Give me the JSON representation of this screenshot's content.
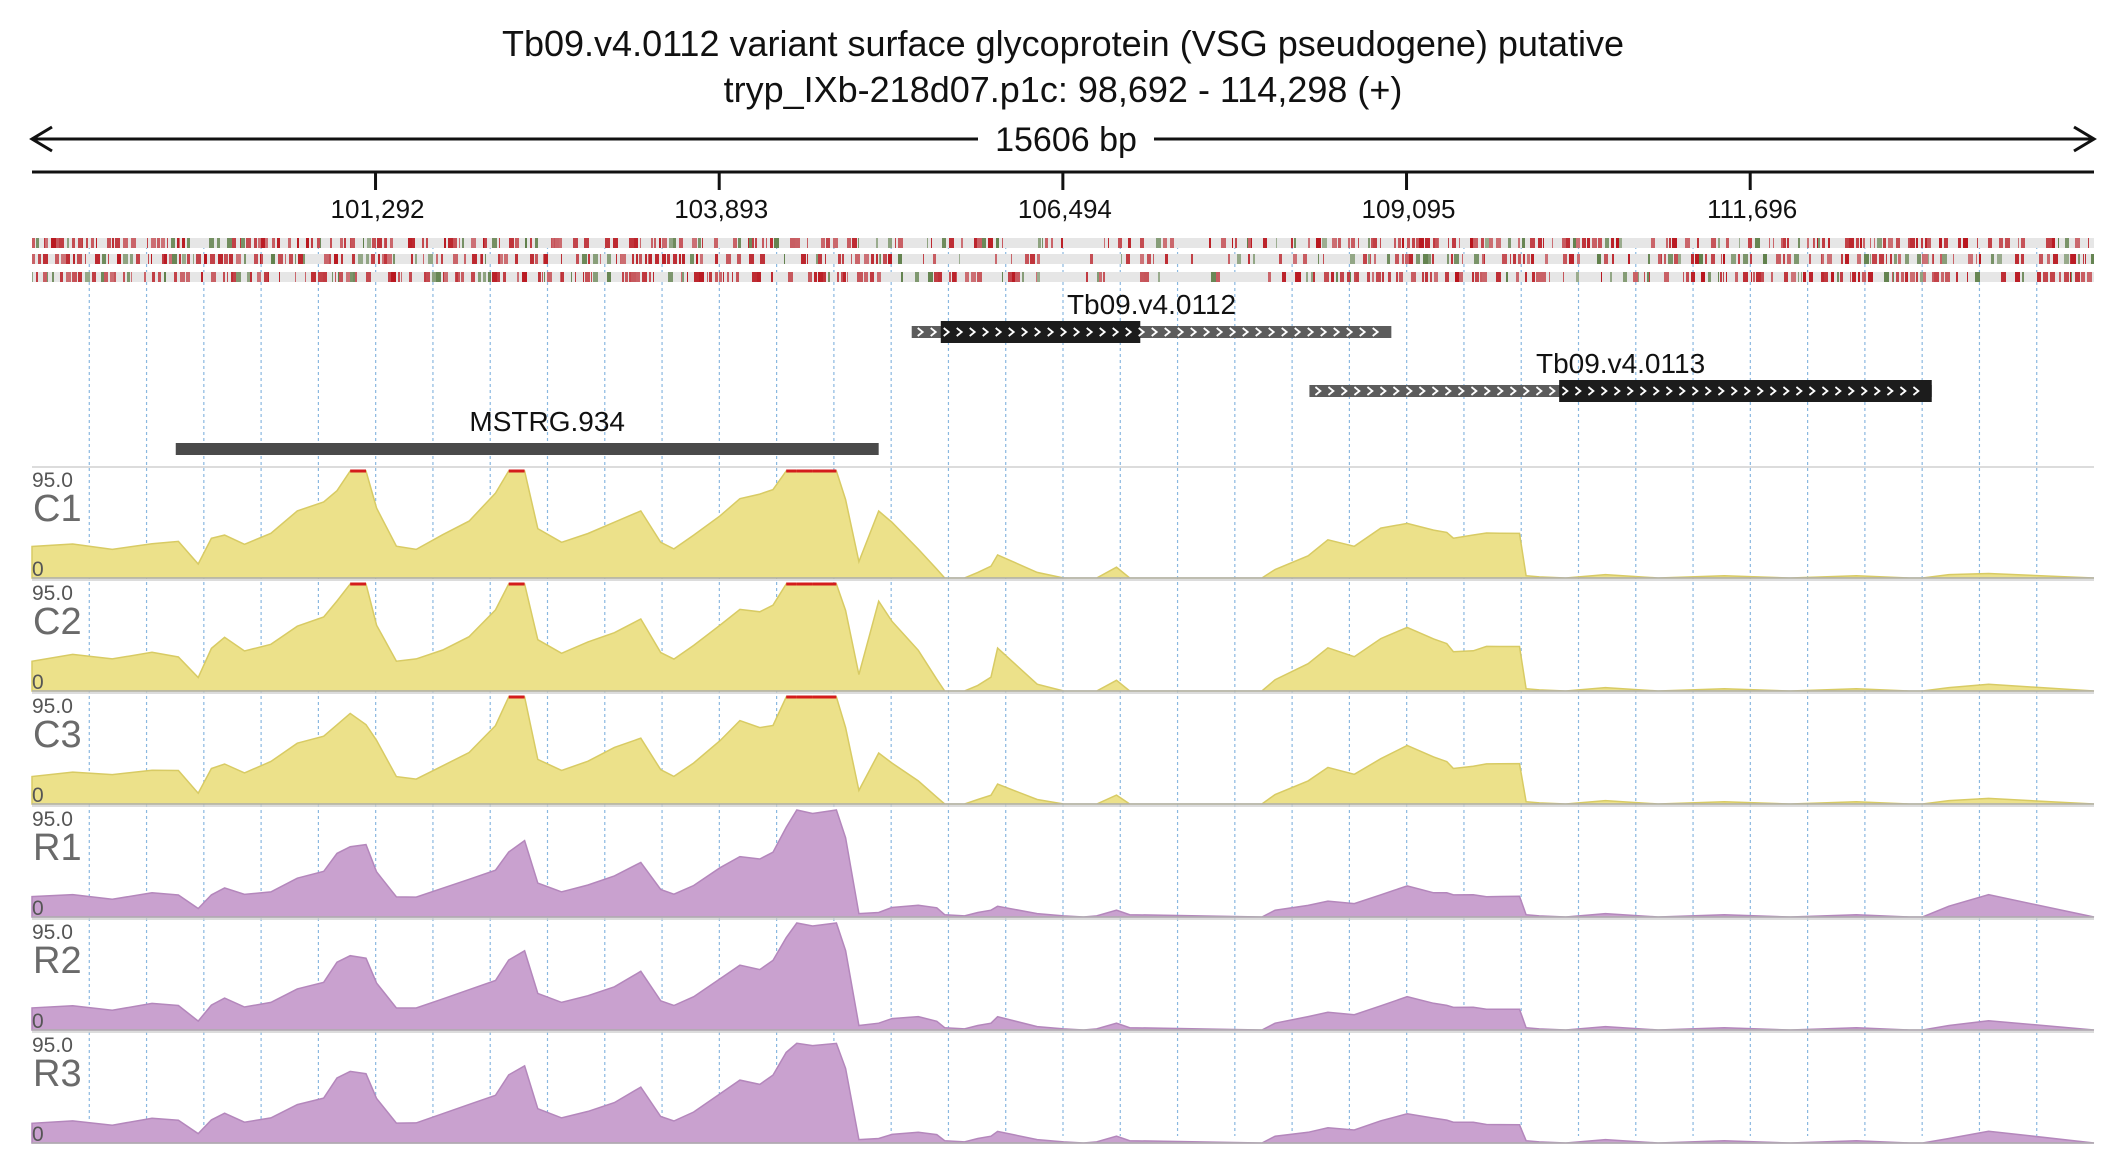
{
  "header": {
    "title_line1": "Tb09.v4.0112  variant surface glycoprotein (VSG  pseudogene)  putative",
    "title_line2": "tryp_IXb-218d07.p1c: 98,692 - 114,298 (+)",
    "span_label": "15606 bp"
  },
  "colors": {
    "chip_fill": "#ece18a",
    "chip_stroke": "#d8cb64",
    "rna_fill": "#c9a1cf",
    "rna_stroke": "#b487bc",
    "saturated": "#d41c1c",
    "gene_thick": "#1c1c1c",
    "gene_thin": "#5c5c5c",
    "transcript": "#4a4a4a",
    "grid": "#8ab8e0",
    "bar_red": "#b8141c",
    "bar_green": "#5f7f4a"
  },
  "chart_data": {
    "type": "area",
    "region": {
      "chrom": "tryp_IXb-218d07.p1c",
      "start": 98692,
      "end": 114298,
      "strand": "+"
    },
    "ticks": [
      {
        "pos": 101292,
        "label": "101,292"
      },
      {
        "pos": 103893,
        "label": "103,893"
      },
      {
        "pos": 106494,
        "label": "106,494"
      },
      {
        "pos": 109095,
        "label": "109,095"
      },
      {
        "pos": 111696,
        "label": "111,696"
      }
    ],
    "features": [
      {
        "name": "Tb09.v4.0112",
        "label": "Tb09.v4.0112",
        "start": 105350,
        "end": 108980,
        "cds_start": 105570,
        "cds_end": 107080
      },
      {
        "name": "Tb09.v4.0113",
        "label": "Tb09.v4.0113",
        "start": 108360,
        "end": 113070,
        "cds_start": 110250,
        "cds_end": 113070
      },
      {
        "name": "MSTRG.934",
        "label": "MSTRG.934",
        "start": 99780,
        "end": 105100
      }
    ],
    "tracks": [
      {
        "name": "C1",
        "label": "C1",
        "kind": "chip",
        "max_label": "95.0",
        "min_label": "0",
        "max": 95,
        "x": [
          98692,
          99000,
          99300,
          99600,
          99800,
          99950,
          100050,
          100150,
          100300,
          100500,
          100700,
          100900,
          101000,
          101100,
          101220,
          101300,
          101450,
          101600,
          101800,
          102000,
          102200,
          102300,
          102420,
          102520,
          102700,
          102900,
          103100,
          103300,
          103450,
          103550,
          103700,
          103900,
          104050,
          104200,
          104300,
          104400,
          104480,
          104600,
          104780,
          104850,
          104950,
          105100,
          105200,
          105400,
          105540,
          105600,
          105750,
          105850,
          105950,
          106000,
          106300,
          106500,
          106650,
          106750,
          106900,
          107000,
          108000,
          108100,
          108350,
          108500,
          108700,
          108900,
          109100,
          109300,
          109400,
          109450,
          109600,
          109700,
          109800,
          109950,
          110000,
          110100,
          110300,
          110600,
          111000,
          111500,
          112000,
          112500,
          112900,
          113000,
          113200,
          113500,
          114298
        ],
        "y": [
          28,
          30,
          25,
          30,
          32,
          12,
          35,
          38,
          30,
          40,
          60,
          68,
          78,
          95,
          95,
          62,
          28,
          25,
          38,
          50,
          75,
          95,
          95,
          44,
          32,
          40,
          50,
          60,
          32,
          26,
          38,
          55,
          70,
          74,
          78,
          95,
          95,
          95,
          95,
          70,
          15,
          60,
          50,
          26,
          8,
          0,
          0,
          5,
          10,
          20,
          5,
          0,
          0,
          0,
          10,
          0,
          0,
          8,
          20,
          34,
          28,
          44,
          48,
          42,
          40,
          35,
          38,
          40,
          40,
          40,
          2,
          1,
          0,
          3,
          0,
          2,
          0,
          2,
          0,
          0,
          3,
          4,
          0
        ]
      },
      {
        "name": "C2",
        "label": "C2",
        "kind": "chip",
        "max_label": "95.0",
        "min_label": "0",
        "max": 95,
        "x": [
          98692,
          99000,
          99300,
          99600,
          99800,
          99950,
          100050,
          100150,
          100300,
          100500,
          100700,
          100900,
          101000,
          101100,
          101220,
          101300,
          101450,
          101600,
          101800,
          102000,
          102200,
          102300,
          102420,
          102520,
          102700,
          102900,
          103100,
          103300,
          103450,
          103550,
          103700,
          103900,
          104050,
          104200,
          104300,
          104400,
          104480,
          104600,
          104780,
          104850,
          104950,
          105100,
          105200,
          105400,
          105540,
          105600,
          105750,
          105850,
          105950,
          106000,
          106300,
          106500,
          106650,
          106750,
          106900,
          107000,
          108000,
          108100,
          108350,
          108500,
          108700,
          108900,
          109100,
          109300,
          109400,
          109450,
          109600,
          109700,
          109800,
          109950,
          110000,
          110100,
          110300,
          110600,
          111000,
          111500,
          112000,
          112500,
          112900,
          113000,
          113200,
          113500,
          114298
        ],
        "y": [
          26,
          32,
          28,
          34,
          30,
          12,
          38,
          48,
          36,
          42,
          58,
          66,
          80,
          95,
          95,
          58,
          26,
          28,
          36,
          48,
          72,
          95,
          95,
          46,
          34,
          44,
          52,
          64,
          34,
          28,
          40,
          58,
          72,
          70,
          76,
          95,
          95,
          95,
          95,
          72,
          15,
          80,
          62,
          36,
          10,
          0,
          0,
          5,
          12,
          38,
          6,
          0,
          0,
          0,
          10,
          0,
          0,
          10,
          24,
          38,
          30,
          46,
          56,
          46,
          42,
          35,
          36,
          40,
          40,
          40,
          2,
          1,
          0,
          3,
          0,
          2,
          0,
          2,
          0,
          0,
          3,
          6,
          0
        ]
      },
      {
        "name": "C3",
        "label": "C3",
        "kind": "chip",
        "max_label": "95.0",
        "min_label": "0",
        "max": 95,
        "x": [
          98692,
          99000,
          99300,
          99600,
          99800,
          99950,
          100050,
          100150,
          100300,
          100500,
          100700,
          100900,
          101000,
          101100,
          101220,
          101300,
          101450,
          101600,
          101800,
          102000,
          102200,
          102300,
          102420,
          102520,
          102700,
          102900,
          103100,
          103300,
          103450,
          103550,
          103700,
          103900,
          104050,
          104200,
          104300,
          104400,
          104480,
          104600,
          104780,
          104850,
          104950,
          105100,
          105200,
          105400,
          105540,
          105600,
          105750,
          105850,
          105950,
          106000,
          106300,
          106500,
          106650,
          106750,
          106900,
          107000,
          108000,
          108100,
          108350,
          108500,
          108700,
          108900,
          109100,
          109300,
          109400,
          109450,
          109600,
          109700,
          109800,
          109950,
          110000,
          110100,
          110300,
          110600,
          111000,
          111500,
          112000,
          112500,
          112900,
          113000,
          113200,
          113500,
          114298
        ],
        "y": [
          24,
          28,
          26,
          30,
          30,
          10,
          32,
          36,
          28,
          38,
          54,
          60,
          70,
          80,
          70,
          56,
          24,
          22,
          34,
          46,
          70,
          95,
          95,
          40,
          30,
          38,
          50,
          58,
          30,
          24,
          36,
          56,
          74,
          68,
          70,
          95,
          95,
          95,
          95,
          68,
          12,
          45,
          36,
          20,
          6,
          0,
          0,
          4,
          8,
          18,
          4,
          0,
          0,
          0,
          8,
          0,
          0,
          8,
          20,
          32,
          26,
          40,
          52,
          42,
          38,
          32,
          34,
          36,
          36,
          36,
          2,
          1,
          0,
          3,
          0,
          2,
          0,
          2,
          0,
          0,
          3,
          5,
          0
        ]
      },
      {
        "name": "R1",
        "label": "R1",
        "kind": "rna",
        "max_label": "95.0",
        "min_label": "0",
        "max": 95,
        "x": [
          98692,
          99000,
          99300,
          99600,
          99800,
          99950,
          100050,
          100150,
          100300,
          100500,
          100700,
          100900,
          101000,
          101100,
          101220,
          101300,
          101450,
          101600,
          101800,
          102000,
          102200,
          102300,
          102420,
          102520,
          102700,
          102900,
          103100,
          103300,
          103450,
          103550,
          103700,
          103900,
          104050,
          104200,
          104300,
          104400,
          104480,
          104600,
          104780,
          104850,
          104950,
          105100,
          105200,
          105400,
          105540,
          105600,
          105750,
          105850,
          105950,
          106000,
          106300,
          106500,
          106650,
          106750,
          106900,
          107000,
          108000,
          108100,
          108350,
          108500,
          108700,
          108900,
          109100,
          109300,
          109400,
          109450,
          109600,
          109700,
          109800,
          109950,
          110000,
          110100,
          110300,
          110600,
          111000,
          111500,
          112000,
          112500,
          112900,
          113000,
          113200,
          113500,
          114298
        ],
        "y": [
          18,
          20,
          16,
          22,
          20,
          8,
          20,
          26,
          20,
          22,
          34,
          40,
          56,
          62,
          64,
          40,
          18,
          18,
          26,
          34,
          42,
          58,
          68,
          30,
          22,
          28,
          36,
          48,
          24,
          20,
          28,
          44,
          54,
          52,
          58,
          80,
          95,
          92,
          95,
          70,
          3,
          4,
          8,
          10,
          8,
          2,
          1,
          4,
          6,
          10,
          3,
          1,
          0,
          1,
          6,
          2,
          0,
          6,
          10,
          14,
          12,
          20,
          28,
          22,
          22,
          20,
          20,
          18,
          18,
          18,
          2,
          1,
          0,
          3,
          0,
          2,
          0,
          2,
          0,
          0,
          10,
          20,
          0
        ]
      },
      {
        "name": "R2",
        "label": "R2",
        "kind": "rna",
        "max_label": "95.0",
        "min_label": "0",
        "max": 95,
        "x": [
          98692,
          99000,
          99300,
          99600,
          99800,
          99950,
          100050,
          100150,
          100300,
          100500,
          100700,
          100900,
          101000,
          101100,
          101220,
          101300,
          101450,
          101600,
          101800,
          102000,
          102200,
          102300,
          102420,
          102520,
          102700,
          102900,
          103100,
          103300,
          103450,
          103550,
          103700,
          103900,
          104050,
          104200,
          104300,
          104400,
          104480,
          104600,
          104780,
          104850,
          104950,
          105100,
          105200,
          105400,
          105540,
          105600,
          105750,
          105850,
          105950,
          106000,
          106300,
          106500,
          106650,
          106750,
          106900,
          107000,
          108000,
          108100,
          108350,
          108500,
          108700,
          108900,
          109100,
          109300,
          109400,
          109450,
          109600,
          109700,
          109800,
          109950,
          110000,
          110100,
          110300,
          110600,
          111000,
          111500,
          112000,
          112500,
          112900,
          113000,
          113200,
          113500,
          114298
        ],
        "y": [
          20,
          22,
          18,
          24,
          22,
          8,
          22,
          28,
          20,
          24,
          36,
          42,
          60,
          66,
          64,
          42,
          20,
          20,
          28,
          36,
          44,
          62,
          70,
          32,
          24,
          30,
          38,
          52,
          26,
          22,
          30,
          46,
          58,
          54,
          62,
          82,
          95,
          92,
          95,
          70,
          4,
          6,
          10,
          12,
          8,
          2,
          1,
          4,
          6,
          12,
          3,
          1,
          0,
          1,
          6,
          2,
          0,
          6,
          12,
          16,
          14,
          22,
          30,
          24,
          22,
          20,
          20,
          18,
          18,
          18,
          2,
          1,
          0,
          3,
          0,
          2,
          0,
          2,
          0,
          0,
          4,
          8,
          0
        ]
      },
      {
        "name": "R3",
        "label": "R3",
        "kind": "rna",
        "max_label": "95.0",
        "min_label": "0",
        "max": 95,
        "x": [
          98692,
          99000,
          99300,
          99600,
          99800,
          99950,
          100050,
          100150,
          100300,
          100500,
          100700,
          100900,
          101000,
          101100,
          101220,
          101300,
          101450,
          101600,
          101800,
          102000,
          102200,
          102300,
          102420,
          102520,
          102700,
          102900,
          103100,
          103300,
          103450,
          103550,
          103700,
          103900,
          104050,
          104200,
          104300,
          104400,
          104480,
          104600,
          104780,
          104850,
          104950,
          105100,
          105200,
          105400,
          105540,
          105600,
          105750,
          105850,
          105950,
          106000,
          106300,
          106500,
          106650,
          106750,
          106900,
          107000,
          108000,
          108100,
          108350,
          108500,
          108700,
          108900,
          109100,
          109300,
          109400,
          109450,
          109600,
          109700,
          109800,
          109950,
          110000,
          110100,
          110300,
          110600,
          111000,
          111500,
          112000,
          112500,
          112900,
          113000,
          113200,
          113500,
          114298
        ],
        "y": [
          18,
          20,
          16,
          22,
          20,
          8,
          20,
          26,
          18,
          22,
          34,
          40,
          58,
          64,
          62,
          40,
          18,
          18,
          26,
          34,
          42,
          60,
          68,
          30,
          22,
          28,
          36,
          50,
          24,
          20,
          28,
          44,
          56,
          52,
          60,
          80,
          88,
          86,
          88,
          66,
          3,
          4,
          8,
          10,
          8,
          2,
          1,
          4,
          6,
          10,
          3,
          1,
          0,
          1,
          6,
          2,
          0,
          6,
          10,
          14,
          12,
          20,
          26,
          22,
          20,
          18,
          18,
          16,
          16,
          16,
          2,
          1,
          0,
          3,
          0,
          2,
          0,
          2,
          0,
          0,
          4,
          10,
          0
        ]
      }
    ]
  }
}
